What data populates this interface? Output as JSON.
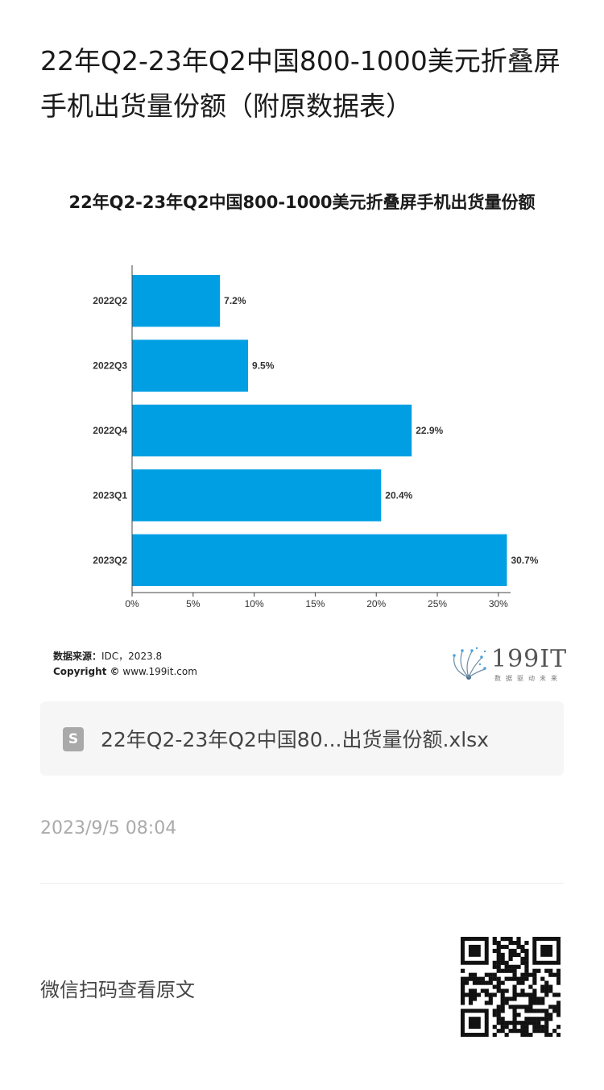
{
  "article": {
    "title": "22年Q2-23年Q2中国800-1000美元折叠屏手机出货量份额（附原数据表）"
  },
  "chart_data": {
    "type": "bar",
    "orientation": "horizontal",
    "title": "22年Q2-23年Q2中国800-1000美元折叠屏手机出货量份额",
    "categories": [
      "2022Q2",
      "2022Q3",
      "2022Q4",
      "2023Q1",
      "2023Q2"
    ],
    "values": [
      7.2,
      9.5,
      22.9,
      20.4,
      30.7
    ],
    "data_labels": [
      "7.2%",
      "9.5%",
      "22.9%",
      "20.4%",
      "30.7%"
    ],
    "xlim": [
      0,
      31
    ],
    "x_ticks": [
      0,
      5,
      10,
      15,
      20,
      25,
      30
    ],
    "x_tick_labels": [
      "0%",
      "5%",
      "10%",
      "15%",
      "20%",
      "25%",
      "30%"
    ],
    "bar_color": "#009fe3",
    "grid": false,
    "xlabel": "",
    "ylabel": ""
  },
  "source": {
    "label": "数据来源：",
    "value": "IDC，2023.8",
    "copyright_label": "Copyright ©",
    "copyright_value": "www.199it.com"
  },
  "logo": {
    "text": "199IT",
    "sub": "数据驱动未来"
  },
  "attachment": {
    "icon": "spreadsheet-file-icon",
    "icon_letter": "S",
    "file_name": "22年Q2-23年Q2中国80...出货量份额.xlsx"
  },
  "meta": {
    "timestamp": "2023/9/5 08:04"
  },
  "footer": {
    "read_original": "微信扫码查看原文",
    "qr_icon": "qr-code-icon"
  }
}
